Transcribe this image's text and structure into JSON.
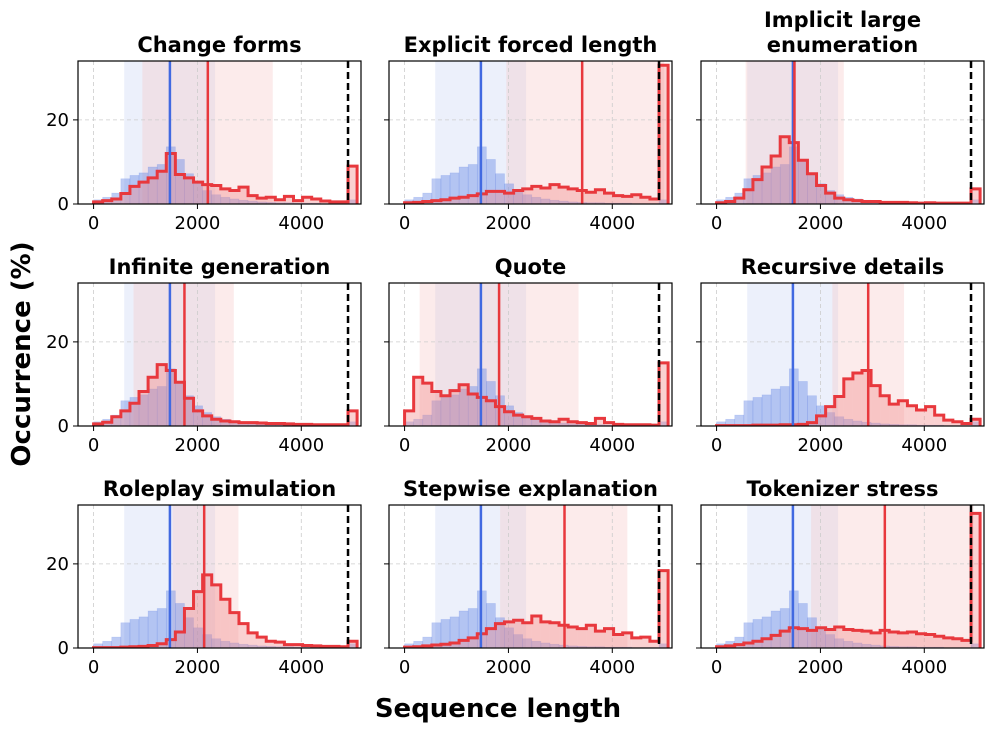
{
  "figure": {
    "xlabel": "Sequence length",
    "ylabel": "Occurrence (%)",
    "colors": {
      "baseline": "#4169e1",
      "variant": "#e8383d",
      "baseline_fill": "#6f8fe6",
      "variant_fill": "#f28c8c",
      "baseline_band": "#c8d3f3",
      "variant_band": "#f7c5c5",
      "grid": "#cccccc",
      "limit_line": "#000000"
    }
  },
  "chart_data": {
    "type": "histogram",
    "grid": true,
    "shared_y": true,
    "xlim": [
      -300,
      5150
    ],
    "ylim": [
      0,
      34
    ],
    "xticks": [
      0,
      2000,
      4000
    ],
    "xtick_labels": [
      "0",
      "2000",
      "4000"
    ],
    "yticks": [
      0,
      20
    ],
    "ytick_labels": [
      "0",
      "20"
    ],
    "bin_edges": [
      0,
      175,
      350,
      525,
      700,
      875,
      1050,
      1225,
      1400,
      1575,
      1750,
      1925,
      2100,
      2275,
      2450,
      2625,
      2800,
      2975,
      3150,
      3325,
      3500,
      3675,
      3850,
      4025,
      4200,
      4375,
      4550,
      4725,
      4900,
      5075
    ],
    "max_length_line": 4900,
    "baseline": {
      "name": "baseline",
      "values": [
        1.0,
        1.6,
        2.6,
        6.0,
        6.8,
        7.4,
        8.8,
        9.4,
        13.6,
        10.6,
        7.2,
        4.8,
        3.2,
        2.2,
        1.6,
        1.2,
        0.9,
        0.7,
        0.5,
        0.4,
        0.3,
        0.3,
        0.2,
        0.2,
        0.2,
        0.1,
        0.1,
        0.1,
        1.0
      ],
      "mean": 1470,
      "band": [
        590,
        2340
      ]
    },
    "panels": [
      {
        "title": "Change forms",
        "values": [
          0.5,
          0.8,
          1.2,
          2.5,
          4.2,
          5.2,
          6.2,
          7.8,
          12.0,
          7.0,
          6.2,
          5.2,
          4.6,
          4.4,
          3.6,
          3.2,
          4.0,
          2.0,
          1.4,
          1.6,
          1.0,
          1.8,
          0.8,
          1.6,
          1.2,
          0.7,
          0.5,
          0.5,
          9.0
        ],
        "mean": 2200,
        "band": [
          940,
          3450
        ]
      },
      {
        "title": "Explicit forced length",
        "values": [
          0.3,
          0.4,
          0.6,
          0.8,
          1.0,
          1.4,
          1.6,
          2.0,
          2.4,
          3.0,
          3.0,
          2.6,
          3.2,
          3.6,
          4.2,
          3.8,
          4.6,
          4.0,
          3.6,
          3.2,
          2.8,
          3.4,
          2.6,
          2.0,
          1.8,
          2.2,
          1.6,
          1.2,
          33.0
        ],
        "mean": 3420,
        "band": [
          1960,
          5000
        ]
      },
      {
        "title": "Implicit large\nenumeration",
        "values": [
          0.3,
          0.6,
          1.4,
          3.4,
          5.8,
          8.8,
          11.4,
          16.0,
          14.6,
          10.4,
          7.2,
          4.4,
          2.6,
          1.4,
          1.0,
          0.8,
          0.6,
          0.6,
          0.4,
          0.4,
          0.4,
          0.3,
          0.2,
          0.3,
          0.2,
          0.2,
          0.2,
          0.2,
          3.6
        ],
        "mean": 1500,
        "band": [
          560,
          2450
        ]
      },
      {
        "title": "Infinite generation",
        "values": [
          0.5,
          0.9,
          2.2,
          3.6,
          5.4,
          8.2,
          11.6,
          14.6,
          13.2,
          10.4,
          6.6,
          3.6,
          2.4,
          1.6,
          1.2,
          1.0,
          0.8,
          0.8,
          0.7,
          0.6,
          0.6,
          0.5,
          0.4,
          0.4,
          0.3,
          0.3,
          0.3,
          0.3,
          3.6
        ],
        "mean": 1750,
        "band": [
          770,
          2700
        ]
      },
      {
        "title": "Quote",
        "values": [
          3.6,
          11.6,
          10.2,
          8.2,
          7.2,
          8.4,
          9.8,
          7.6,
          6.8,
          6.0,
          4.6,
          3.4,
          2.6,
          2.2,
          1.8,
          1.2,
          1.0,
          1.6,
          1.0,
          0.8,
          0.6,
          1.8,
          0.8,
          0.4,
          0.3,
          0.3,
          0.3,
          0.2,
          15.0
        ],
        "mean": 1820,
        "band": [
          290,
          3350
        ]
      },
      {
        "title": "Recursive details",
        "values": [
          0.1,
          0.1,
          0.1,
          0.1,
          0.2,
          0.2,
          0.2,
          0.3,
          0.3,
          0.4,
          0.8,
          2.4,
          4.6,
          7.0,
          11.2,
          12.6,
          13.2,
          9.6,
          7.2,
          5.2,
          6.0,
          4.8,
          3.8,
          4.6,
          2.6,
          1.4,
          1.0,
          0.6,
          1.6
        ],
        "mean": 2920,
        "band": [
          2230,
          3610
        ]
      },
      {
        "title": "Roleplay simulation",
        "values": [
          0.1,
          0.1,
          0.1,
          0.2,
          0.3,
          0.4,
          0.6,
          1.0,
          2.0,
          3.8,
          9.4,
          13.4,
          17.4,
          15.0,
          11.6,
          8.4,
          5.8,
          3.6,
          2.6,
          1.6,
          1.4,
          0.8,
          0.8,
          0.6,
          0.5,
          0.4,
          0.4,
          0.3,
          1.6
        ],
        "mean": 2130,
        "band": [
          1520,
          2790
        ]
      },
      {
        "title": "Stepwise explanation",
        "values": [
          0.2,
          0.3,
          0.5,
          0.7,
          0.9,
          1.2,
          1.8,
          2.4,
          3.4,
          4.6,
          5.8,
          6.2,
          6.6,
          6.0,
          7.6,
          6.2,
          6.0,
          5.4,
          5.0,
          4.6,
          5.4,
          4.0,
          4.6,
          3.2,
          3.6,
          2.4,
          2.6,
          1.6,
          18.4
        ],
        "mean": 3080,
        "band": [
          1840,
          4290
        ]
      },
      {
        "title": "Tokenizer stress",
        "values": [
          0.3,
          0.5,
          0.8,
          1.2,
          1.6,
          2.2,
          3.0,
          4.0,
          4.8,
          4.6,
          4.2,
          4.8,
          4.4,
          5.0,
          4.4,
          4.2,
          4.0,
          3.6,
          4.2,
          3.8,
          3.6,
          3.8,
          3.4,
          3.2,
          2.8,
          2.4,
          2.2,
          1.8,
          32.0
        ],
        "mean": 3240,
        "band": [
          1820,
          4950
        ]
      }
    ]
  }
}
